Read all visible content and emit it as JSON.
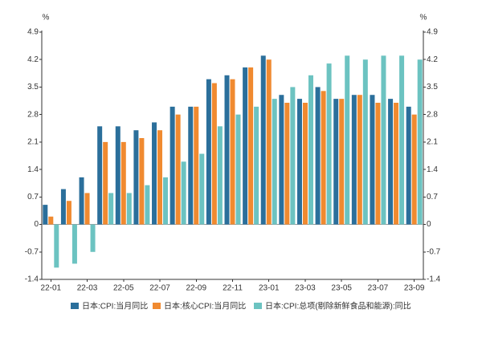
{
  "chart_data": {
    "type": "bar",
    "y_unit": "%",
    "categories": [
      "22-01",
      null,
      "22-03",
      null,
      "22-05",
      null,
      "22-07",
      null,
      "22-09",
      null,
      "22-11",
      null,
      "23-01",
      null,
      "23-03",
      null,
      "23-05",
      null,
      "23-07",
      null,
      "23-09"
    ],
    "series": [
      {
        "name": "日本:CPI:当月同比",
        "color": "#2b6f9b",
        "values": [
          0.5,
          0.9,
          1.2,
          2.5,
          2.5,
          2.4,
          2.6,
          3.0,
          3.0,
          3.7,
          3.8,
          4.0,
          4.3,
          3.3,
          3.2,
          3.5,
          3.2,
          3.3,
          3.3,
          3.2,
          3.0
        ]
      },
      {
        "name": "日本:核心CPI:当月同比",
        "color": "#f08a30",
        "values": [
          0.2,
          0.6,
          0.8,
          2.1,
          2.1,
          2.2,
          2.4,
          2.8,
          3.0,
          3.6,
          3.7,
          4.0,
          4.2,
          3.1,
          3.1,
          3.4,
          3.2,
          3.3,
          3.1,
          3.1,
          2.8
        ]
      },
      {
        "name": "日本:CPI:总项(剔除新鲜食品和能源):同比",
        "color": "#6cc3c1",
        "values": [
          -1.1,
          -1.0,
          -0.7,
          0.8,
          0.8,
          1.0,
          1.2,
          1.6,
          1.8,
          2.5,
          2.8,
          3.0,
          3.2,
          3.5,
          3.8,
          4.1,
          4.3,
          4.2,
          4.3,
          4.3,
          4.2
        ]
      }
    ],
    "ylim": [
      -1.4,
      4.9
    ],
    "yticks": [
      -1.4,
      -0.7,
      0,
      0.7,
      1.4,
      2.1,
      2.8,
      3.5,
      4.2,
      4.9
    ],
    "y2_unit": "%",
    "y2lim": [
      -1.4,
      4.9
    ],
    "y2ticks": [
      -1.4,
      -0.7,
      0,
      0.7,
      1.4,
      2.1,
      2.8,
      3.5,
      4.2,
      4.9
    ]
  }
}
